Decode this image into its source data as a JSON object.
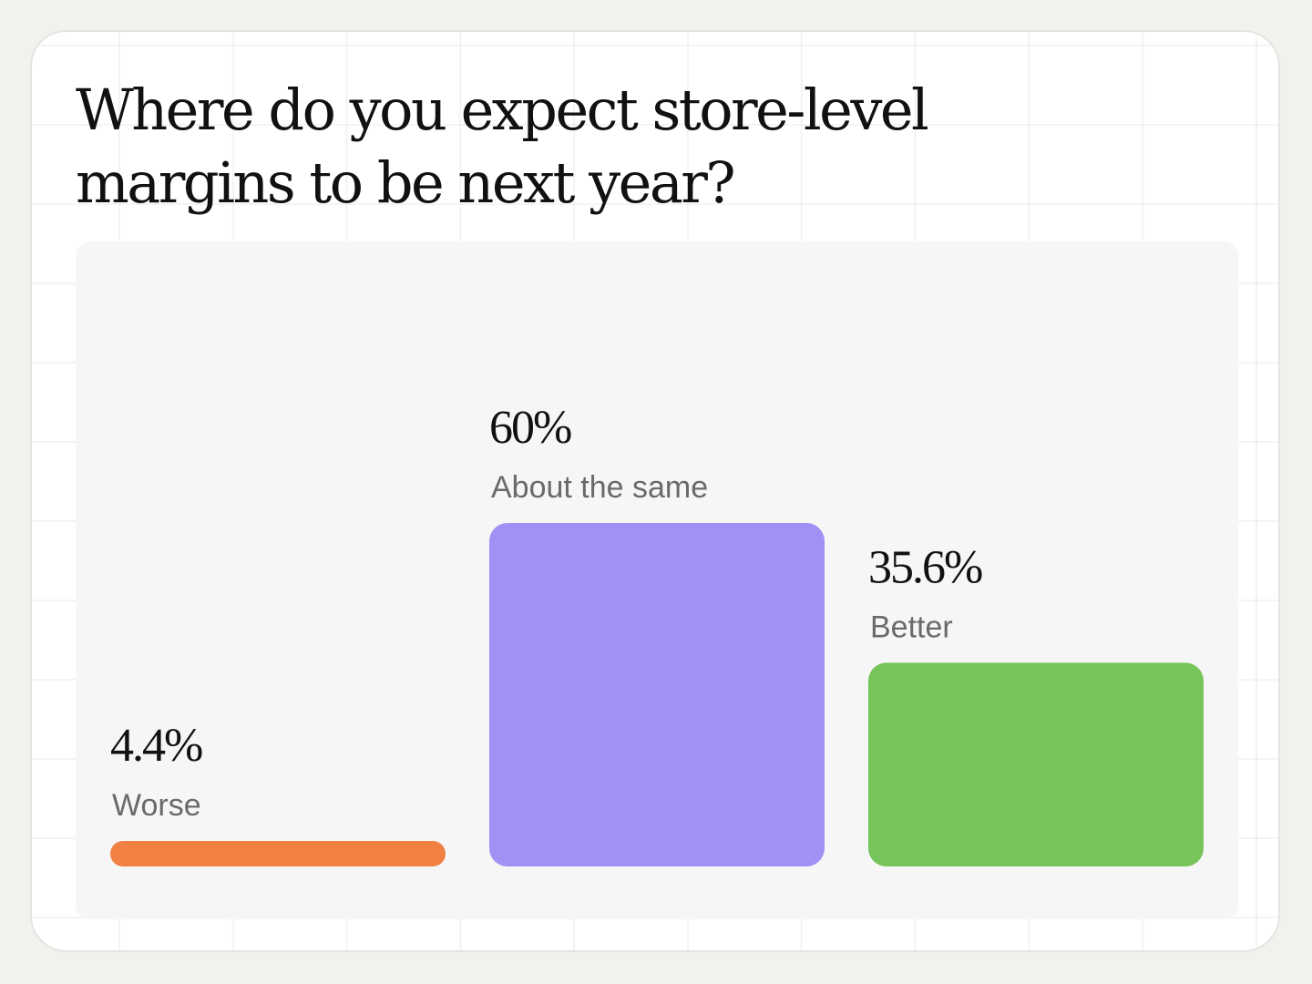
{
  "chart_data": {
    "type": "bar",
    "title": "Where do you expect store-level margins to be next year?",
    "categories": [
      "Worse",
      "About the same",
      "Better"
    ],
    "values": [
      4.4,
      60,
      35.6
    ],
    "value_labels": [
      "4.4%",
      "60%",
      "35.6%"
    ],
    "colors": [
      "#f08143",
      "#a091f5",
      "#77c45a"
    ],
    "ylim": [
      0,
      60
    ],
    "xlabel": "",
    "ylabel": "",
    "grid": false,
    "legend": "none"
  }
}
